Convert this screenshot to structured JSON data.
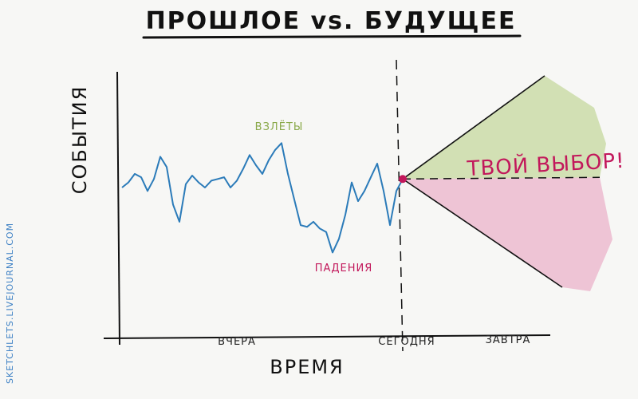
{
  "chart_data": {
    "type": "line",
    "title": "ПРОШЛОЕ vs. БУДУЩЕЕ",
    "xlabel": "ВРЕМЯ",
    "ylabel": "СОБЫТИЯ",
    "x_ticks": [
      "ВЧЕРА",
      "СЕГОДНЯ",
      "ЗАВТРА"
    ],
    "annotations": {
      "peak": "ВЗЛЁТЫ",
      "trough": "ПАДЕНИЯ",
      "choice": "ТВОЙ ВЫБОР!"
    },
    "series": [
      {
        "color": "#2b7bb9",
        "values": [
          52,
          55,
          60,
          58,
          50,
          57,
          70,
          64,
          42,
          32,
          54,
          59,
          55,
          52,
          56,
          57,
          58,
          52,
          56,
          63,
          71,
          65,
          60,
          68,
          74,
          78,
          60,
          45,
          30,
          29,
          32,
          28,
          26,
          14,
          22,
          36,
          55,
          44,
          50,
          58,
          66,
          50,
          30,
          50,
          57
        ]
      }
    ],
    "future": {
      "current_value": 57,
      "upper_color": "#c6d89e",
      "lower_color": "#e8a2bf",
      "marker_color": "#c2185b"
    },
    "grid": false
  },
  "credit": "SKETCHLETS.LIVEJOURNAL.COM"
}
